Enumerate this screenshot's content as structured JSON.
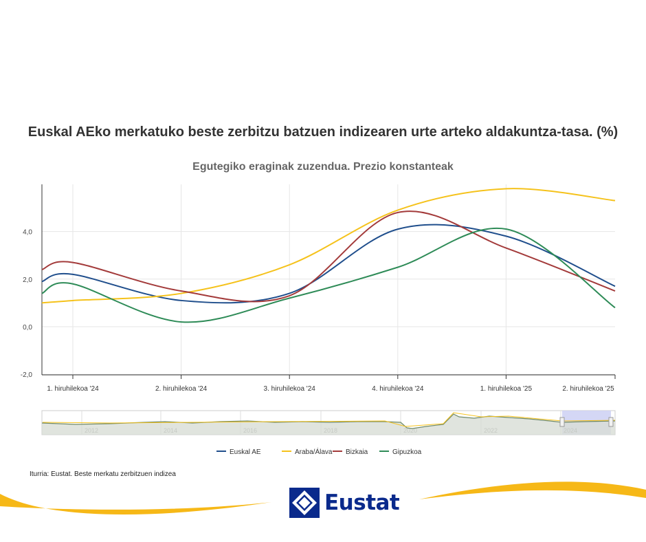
{
  "title": "Euskal AEko merkatuko beste zerbitzu batzuen indizearen urte arteko aldakuntza-tasa. (%)",
  "subtitle": "Egutegiko eraginak zuzendua. Prezio konstanteak",
  "source": "Iturria: Eustat. Beste merkatu zerbitzuen indizea",
  "logo_text": "Eustat",
  "chart_data": {
    "type": "line",
    "title": "Euskal AEko merkatuko beste zerbitzu batzuen indizearen urte arteko aldakuntza-tasa. (%)",
    "subtitle": "Egutegiko eraginak zuzendua. Prezio konstanteak",
    "categories": [
      "1. hiruhilekoa '24",
      "2. hiruhilekoa '24",
      "3. hiruhilekoa '24",
      "4. hiruhilekoa '24",
      "1. hiruhilekoa '25",
      "2. hiruhilekoa '25"
    ],
    "x": [
      0.7,
      1,
      2,
      3,
      4,
      5,
      5.0
    ],
    "series": [
      {
        "name": "Euskal AE",
        "color": "#1f4e8c",
        "values": [
          1.9,
          2.2,
          1.1,
          1.4,
          4.1,
          3.8,
          1.7
        ]
      },
      {
        "name": "Araba/Álava",
        "color": "#f5c21b",
        "values": [
          1.0,
          1.1,
          1.4,
          2.6,
          4.9,
          5.8,
          5.3
        ]
      },
      {
        "name": "Bizkaia",
        "color": "#a33a3a",
        "values": [
          2.4,
          2.7,
          1.5,
          1.3,
          4.8,
          3.3,
          1.5
        ]
      },
      {
        "name": "Gipuzkoa",
        "color": "#2e8b57",
        "values": [
          1.4,
          1.8,
          0.2,
          1.2,
          2.5,
          4.1,
          0.8
        ]
      }
    ],
    "yticks": [
      "4,0",
      "2,0",
      "0,0",
      "-2,0"
    ],
    "ylim": [
      -2,
      6
    ],
    "grid": true,
    "legend": "bottom",
    "navigator_labels": [
      "2012",
      "2014",
      "2016",
      "2018",
      "2020",
      "2022",
      "2024"
    ]
  }
}
